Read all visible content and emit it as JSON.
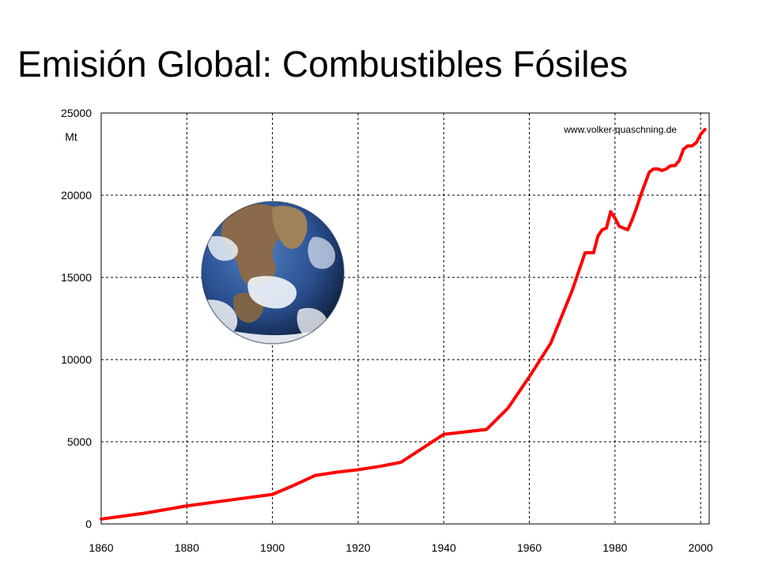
{
  "title": "Emisión Global: Combustibles Fósiles",
  "chart_data": {
    "type": "line",
    "title": "Emisión Global: Combustibles Fósiles",
    "xlabel": "",
    "ylabel": "Mt",
    "xlim": [
      1860,
      2002
    ],
    "ylim": [
      0,
      25000
    ],
    "x_ticks": [
      1860,
      1880,
      1900,
      1920,
      1940,
      1960,
      1980,
      2000
    ],
    "y_ticks": [
      0,
      5000,
      10000,
      15000,
      20000,
      25000
    ],
    "grid": true,
    "legend": "none",
    "annotation": "www.volker-quaschning.de",
    "series": [
      {
        "color": "#ff0000",
        "x": [
          1860,
          1870,
          1880,
          1890,
          1900,
          1905,
          1910,
          1915,
          1920,
          1925,
          1930,
          1935,
          1940,
          1945,
          1950,
          1955,
          1960,
          1965,
          1970,
          1973,
          1974,
          1975,
          1976,
          1977,
          1978,
          1979,
          1980,
          1981,
          1982,
          1983,
          1984,
          1985,
          1986,
          1987,
          1988,
          1989,
          1990,
          1991,
          1992,
          1993,
          1994,
          1995,
          1996,
          1997,
          1998,
          1999,
          2000,
          2001
        ],
        "y": [
          300,
          650,
          1100,
          1450,
          1800,
          2350,
          2950,
          3150,
          3300,
          3500,
          3750,
          4600,
          5450,
          5600,
          5750,
          7050,
          8950,
          11000,
          14200,
          16500,
          16500,
          16500,
          17500,
          17900,
          18000,
          19000,
          18600,
          18100,
          18000,
          17900,
          18500,
          19200,
          20000,
          20700,
          21400,
          21600,
          21600,
          21500,
          21600,
          21800,
          21800,
          22100,
          22800,
          23000,
          23000,
          23200,
          23700,
          24000
        ]
      }
    ]
  },
  "earth_image": {
    "description_icon": "earth-globe-icon"
  },
  "colors": {
    "line": "#ff0000",
    "grid": "#000000",
    "ocean": "#2a4f8f",
    "land": "#8a6a4a",
    "cloud": "#ffffff"
  }
}
